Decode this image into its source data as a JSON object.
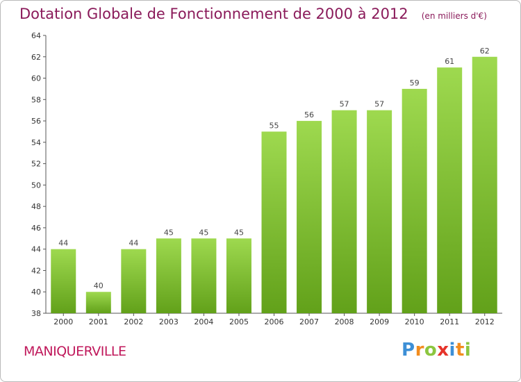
{
  "chart_data": {
    "type": "bar",
    "title": "Dotation Globale de Fonctionnement de 2000 à 2012",
    "subtitle": "(en milliers d'€)",
    "categories": [
      "2000",
      "2001",
      "2002",
      "2003",
      "2004",
      "2005",
      "2006",
      "2007",
      "2008",
      "2009",
      "2010",
      "2011",
      "2012"
    ],
    "values": [
      44,
      40,
      44,
      45,
      45,
      45,
      55,
      56,
      57,
      57,
      59,
      61,
      62
    ],
    "ylim": [
      38,
      64
    ],
    "yticks": [
      38,
      40,
      42,
      44,
      46,
      48,
      50,
      52,
      54,
      56,
      58,
      60,
      62,
      64
    ],
    "grid": false,
    "bar_color_top": "#9ed94f",
    "bar_color_bottom": "#62a11a"
  },
  "commune": "MANIQUERVILLE",
  "logo": {
    "text": "Proxiti",
    "letters": [
      {
        "ch": "P",
        "color": "#3d8fd6"
      },
      {
        "ch": "r",
        "color": "#f28c1e"
      },
      {
        "ch": "o",
        "color": "#8cc63f"
      },
      {
        "ch": "x",
        "color": "#e6332a"
      },
      {
        "ch": "i",
        "color": "#3d8fd6"
      },
      {
        "ch": "t",
        "color": "#f28c1e"
      },
      {
        "ch": "i",
        "color": "#8cc63f"
      }
    ]
  }
}
